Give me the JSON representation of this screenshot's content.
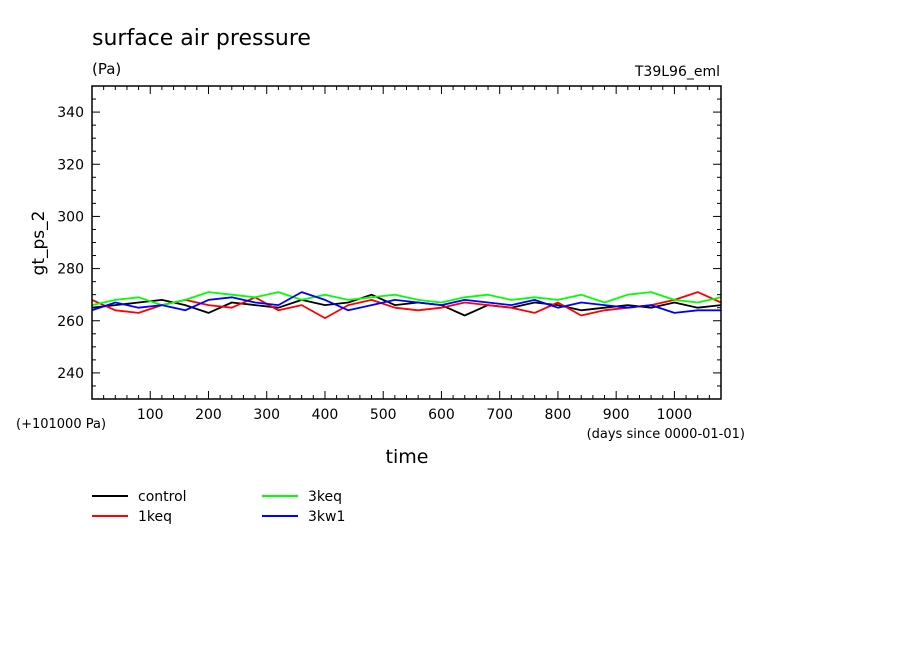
{
  "chart_data": {
    "type": "line",
    "title": "surface air pressure",
    "units": "(Pa)",
    "experiment": "T39L96_eml",
    "ylabel": "gt_ps_2",
    "xlabel": "time",
    "y_offset_note": "(+101000 Pa)",
    "x_units_note": "(days since 0000-01-01)",
    "xlim": [
      0,
      1080
    ],
    "ylim": [
      230,
      350
    ],
    "xticks": [
      100,
      200,
      300,
      400,
      500,
      600,
      700,
      800,
      900,
      1000
    ],
    "yticks": [
      240,
      260,
      280,
      300,
      320,
      340
    ],
    "legend_position": "bottom-left",
    "series": [
      {
        "name": "control",
        "color": "#000000",
        "x": [
          0,
          40,
          80,
          120,
          160,
          200,
          240,
          280,
          320,
          360,
          400,
          440,
          480,
          520,
          560,
          600,
          640,
          680,
          720,
          760,
          800,
          840,
          880,
          920,
          960,
          1000,
          1040,
          1080
        ],
        "values": [
          265,
          266,
          267,
          268,
          266,
          263,
          267,
          266,
          265,
          268,
          266,
          267,
          270,
          266,
          267,
          266,
          262,
          266,
          265,
          267,
          266,
          264,
          265,
          266,
          265,
          267,
          265,
          266
        ]
      },
      {
        "name": "1keq",
        "color": "#ff0000",
        "x": [
          0,
          40,
          80,
          120,
          160,
          200,
          240,
          280,
          320,
          360,
          400,
          440,
          480,
          520,
          560,
          600,
          640,
          680,
          720,
          760,
          800,
          840,
          880,
          920,
          960,
          1000,
          1040,
          1080
        ],
        "values": [
          268,
          264,
          263,
          266,
          268,
          266,
          265,
          269,
          264,
          266,
          261,
          266,
          268,
          265,
          264,
          265,
          267,
          266,
          265,
          263,
          267,
          262,
          264,
          265,
          266,
          268,
          271,
          267
        ]
      },
      {
        "name": "3keq",
        "color": "#00ff00",
        "x": [
          0,
          40,
          80,
          120,
          160,
          200,
          240,
          280,
          320,
          360,
          400,
          440,
          480,
          520,
          560,
          600,
          640,
          680,
          720,
          760,
          800,
          840,
          880,
          920,
          960,
          1000,
          1040,
          1080
        ],
        "values": [
          266,
          268,
          269,
          266,
          268,
          271,
          270,
          269,
          271,
          268,
          270,
          268,
          269,
          270,
          268,
          267,
          269,
          270,
          268,
          269,
          268,
          270,
          267,
          270,
          271,
          268,
          267,
          269
        ]
      },
      {
        "name": "3kw1",
        "color": "#0000ff",
        "x": [
          0,
          40,
          80,
          120,
          160,
          200,
          240,
          280,
          320,
          360,
          400,
          440,
          480,
          520,
          560,
          600,
          640,
          680,
          720,
          760,
          800,
          840,
          880,
          920,
          960,
          1000,
          1040,
          1080
        ],
        "values": [
          264,
          267,
          265,
          266,
          264,
          268,
          269,
          267,
          266,
          271,
          268,
          264,
          266,
          268,
          267,
          266,
          268,
          267,
          266,
          268,
          265,
          267,
          266,
          265,
          266,
          263,
          264,
          264
        ]
      }
    ]
  }
}
